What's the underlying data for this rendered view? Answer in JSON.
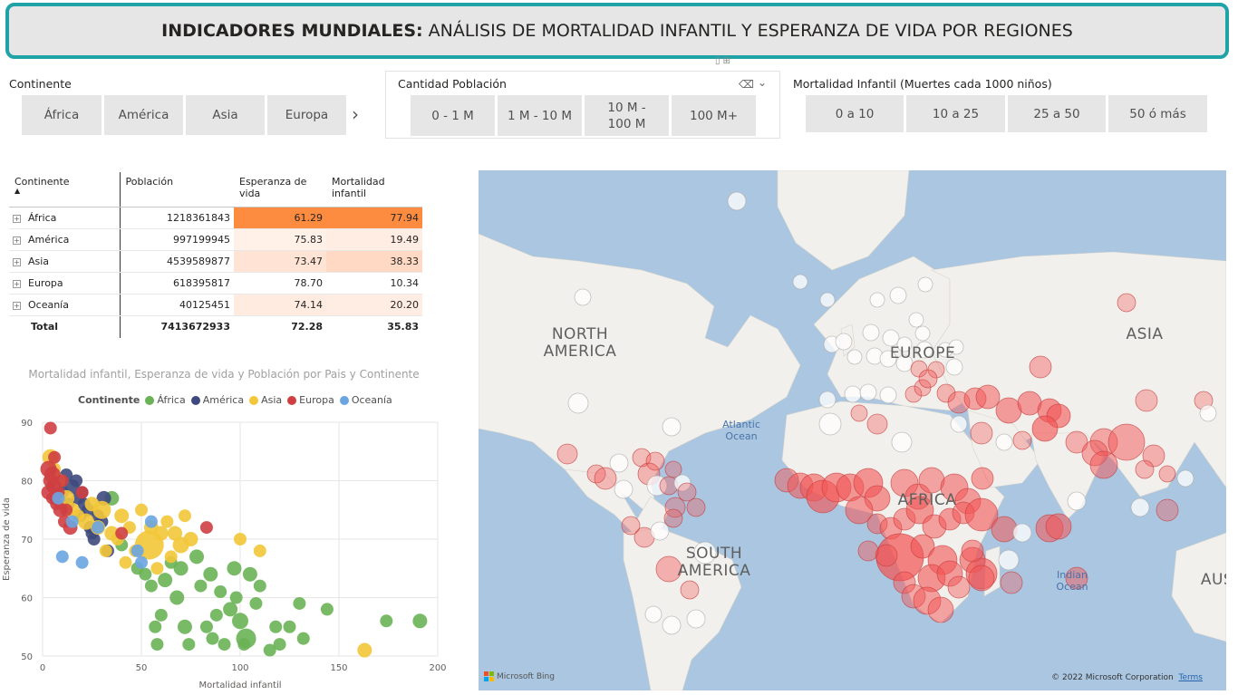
{
  "title": {
    "bold": "INDICADORES MUNDIALES:",
    "rest": "ANÁLISIS DE MORTALIDAD INFANTIL Y ESPERANZA DE VIDA POR REGIONES"
  },
  "slicers": {
    "continente": {
      "title": "Continente",
      "options": [
        "África",
        "América",
        "Asia",
        "Europa"
      ],
      "next_icon": "chevron-right-icon"
    },
    "poblacion": {
      "title": "Cantidad Población",
      "options": [
        "0 - 1 M",
        "1 M - 10 M",
        "10 M - 100 M",
        "100 M+"
      ],
      "icons": [
        "eraser-icon",
        "chevron-down-icon"
      ]
    },
    "mortalidad": {
      "title": "Mortalidad Infantil (Muertes cada 1000 niños)",
      "options": [
        "0 a 10",
        "10 a 25",
        "25 a 50",
        "50 ó más"
      ]
    }
  },
  "table": {
    "headers": [
      "Continente",
      "Población",
      "Esperanza de vida",
      "Mortalidad infantil"
    ],
    "rows": [
      {
        "continent": "África",
        "population": "1218361843",
        "life": "61.29",
        "mort": "77.94"
      },
      {
        "continent": "América",
        "population": "997199945",
        "life": "75.83",
        "mort": "19.49"
      },
      {
        "continent": "Asia",
        "population": "4539589877",
        "life": "73.47",
        "mort": "38.33"
      },
      {
        "continent": "Europa",
        "population": "618395817",
        "life": "78.70",
        "mort": "10.34"
      },
      {
        "continent": "Oceanía",
        "population": "40125451",
        "life": "74.14",
        "mort": "20.20"
      }
    ],
    "total": {
      "label": "Total",
      "population": "7413672933",
      "life": "72.28",
      "mort": "35.83"
    },
    "heat_colors": {
      "life": [
        "#fe8c40",
        "#fff0e8",
        "#ffe3d4",
        "#ffffff",
        "#ffebe0"
      ],
      "mort": [
        "#fe8c40",
        "#ffece2",
        "#ffd9c3",
        "#ffffff",
        "#ffece2"
      ]
    }
  },
  "scatter": {
    "title": "Mortalidad infantil, Esperanza de vida y Población por Pais y Continente",
    "legend_title": "Continente"
  },
  "chart_data": {
    "type": "scatter",
    "title": "Mortalidad infantil, Esperanza de vida y Población por Pais y Continente",
    "xlabel": "Mortalidad infantil",
    "ylabel": "Esperanza de vida",
    "xlim": [
      0,
      200
    ],
    "ylim": [
      50,
      90
    ],
    "xticks": [
      0,
      50,
      100,
      150,
      200
    ],
    "yticks": [
      50,
      60,
      70,
      80,
      90
    ],
    "grid": true,
    "legend_position": "top",
    "series": [
      {
        "name": "África",
        "color": "#6ab255",
        "points": [
          [
            35,
            77,
            8
          ],
          [
            40,
            69,
            7
          ],
          [
            48,
            65,
            7
          ],
          [
            52,
            64,
            7
          ],
          [
            55,
            62,
            7
          ],
          [
            57,
            55,
            7
          ],
          [
            58,
            52,
            7
          ],
          [
            60,
            57,
            7
          ],
          [
            62,
            63,
            8
          ],
          [
            65,
            66,
            7
          ],
          [
            68,
            60,
            8
          ],
          [
            70,
            65,
            8
          ],
          [
            72,
            55,
            8
          ],
          [
            74,
            52,
            7
          ],
          [
            78,
            67,
            8
          ],
          [
            80,
            62,
            7
          ],
          [
            83,
            55,
            7
          ],
          [
            85,
            64,
            8
          ],
          [
            86,
            53,
            7
          ],
          [
            88,
            57,
            7
          ],
          [
            90,
            61,
            7
          ],
          [
            92,
            52,
            7
          ],
          [
            95,
            58,
            8
          ],
          [
            97,
            65,
            8
          ],
          [
            98,
            60,
            7
          ],
          [
            100,
            56,
            9
          ],
          [
            102,
            52,
            7
          ],
          [
            103,
            53,
            11
          ],
          [
            105,
            64,
            8
          ],
          [
            108,
            59,
            7
          ],
          [
            110,
            62,
            7
          ],
          [
            115,
            51,
            7
          ],
          [
            118,
            55,
            7
          ],
          [
            120,
            52,
            7
          ],
          [
            125,
            55,
            7
          ],
          [
            130,
            59,
            7
          ],
          [
            132,
            53,
            7
          ],
          [
            144,
            58,
            7
          ],
          [
            174,
            56,
            7
          ],
          [
            191,
            56,
            8
          ]
        ]
      },
      {
        "name": "América",
        "color": "#3e4a7e",
        "points": [
          [
            5,
            79,
            7
          ],
          [
            7,
            77,
            8
          ],
          [
            9,
            80,
            7
          ],
          [
            10,
            78,
            7
          ],
          [
            12,
            81,
            7
          ],
          [
            13,
            76,
            7
          ],
          [
            15,
            79,
            8
          ],
          [
            17,
            80,
            7
          ],
          [
            18,
            77,
            7
          ],
          [
            20,
            78,
            7
          ],
          [
            21,
            76,
            7
          ],
          [
            23,
            75,
            7
          ],
          [
            24,
            72,
            7
          ],
          [
            26,
            70,
            7
          ],
          [
            28,
            74,
            7
          ],
          [
            30,
            73,
            7
          ],
          [
            31,
            77,
            8
          ],
          [
            33,
            68,
            7
          ],
          [
            25,
            71,
            7
          ],
          [
            19,
            74,
            7
          ]
        ]
      },
      {
        "name": "Asia",
        "color": "#f3c738",
        "points": [
          [
            4,
            84,
            9
          ],
          [
            6,
            82,
            7
          ],
          [
            8,
            80,
            8
          ],
          [
            12,
            77,
            9
          ],
          [
            15,
            75,
            8
          ],
          [
            18,
            74,
            7
          ],
          [
            22,
            73,
            9
          ],
          [
            25,
            76,
            8
          ],
          [
            28,
            72,
            8
          ],
          [
            32,
            68,
            7
          ],
          [
            35,
            71,
            8
          ],
          [
            38,
            70,
            7
          ],
          [
            40,
            74,
            8
          ],
          [
            44,
            72,
            7
          ],
          [
            47,
            68,
            7
          ],
          [
            50,
            75,
            7
          ],
          [
            54,
            69,
            16
          ],
          [
            55,
            72,
            8
          ],
          [
            58,
            65,
            7
          ],
          [
            60,
            71,
            8
          ],
          [
            63,
            73,
            7
          ],
          [
            65,
            67,
            7
          ],
          [
            67,
            71,
            8
          ],
          [
            70,
            69,
            9
          ],
          [
            72,
            74,
            7
          ],
          [
            75,
            70,
            8
          ],
          [
            100,
            70,
            7
          ],
          [
            110,
            68,
            7
          ],
          [
            163,
            51,
            8
          ],
          [
            30,
            75,
            10
          ],
          [
            42,
            66,
            7
          ]
        ]
      },
      {
        "name": "Europa",
        "color": "#cf3f42",
        "points": [
          [
            3,
            82,
            9
          ],
          [
            3,
            78,
            8
          ],
          [
            4,
            80,
            8
          ],
          [
            5,
            81,
            9
          ],
          [
            5,
            77,
            7
          ],
          [
            6,
            79,
            8
          ],
          [
            7,
            76,
            7
          ],
          [
            8,
            78,
            7
          ],
          [
            9,
            75,
            8
          ],
          [
            10,
            80,
            7
          ],
          [
            11,
            73,
            7
          ],
          [
            12,
            75,
            7
          ],
          [
            14,
            72,
            8
          ],
          [
            4,
            89,
            7
          ],
          [
            83,
            72,
            7
          ],
          [
            40,
            71,
            7
          ],
          [
            20,
            78,
            7
          ],
          [
            6,
            84,
            7
          ]
        ]
      },
      {
        "name": "Oceanía",
        "color": "#6aa5e2",
        "points": [
          [
            8,
            77,
            7
          ],
          [
            10,
            67,
            7
          ],
          [
            15,
            73,
            7
          ],
          [
            20,
            66,
            7
          ],
          [
            28,
            72,
            7
          ],
          [
            48,
            68,
            7
          ],
          [
            55,
            73,
            7
          ],
          [
            50,
            66,
            7
          ]
        ]
      }
    ]
  },
  "map": {
    "labels": [
      {
        "text": "NORTH\nAMERICA",
        "name": "label-north-america"
      },
      {
        "text": "EUROPE",
        "name": "label-europe"
      },
      {
        "text": "ASIA",
        "name": "label-asia"
      },
      {
        "text": "AFRICA",
        "name": "label-africa"
      },
      {
        "text": "SOUTH\nAMERICA",
        "name": "label-south-america"
      },
      {
        "text": "AUS",
        "name": "label-australia"
      }
    ],
    "oceans": [
      {
        "text": "Atlantic\nOcean",
        "name": "label-atlantic"
      },
      {
        "text": "Indian\nOcean",
        "name": "label-indian"
      }
    ],
    "attribution": "Microsoft Bing",
    "copyright": "© 2022 Microsoft Corporation",
    "terms": "Terms",
    "colors": {
      "water": "#aac6e0",
      "land": "#f2f0ec",
      "bubble_high": "#f25555",
      "bubble_low": "#ffffff"
    }
  }
}
